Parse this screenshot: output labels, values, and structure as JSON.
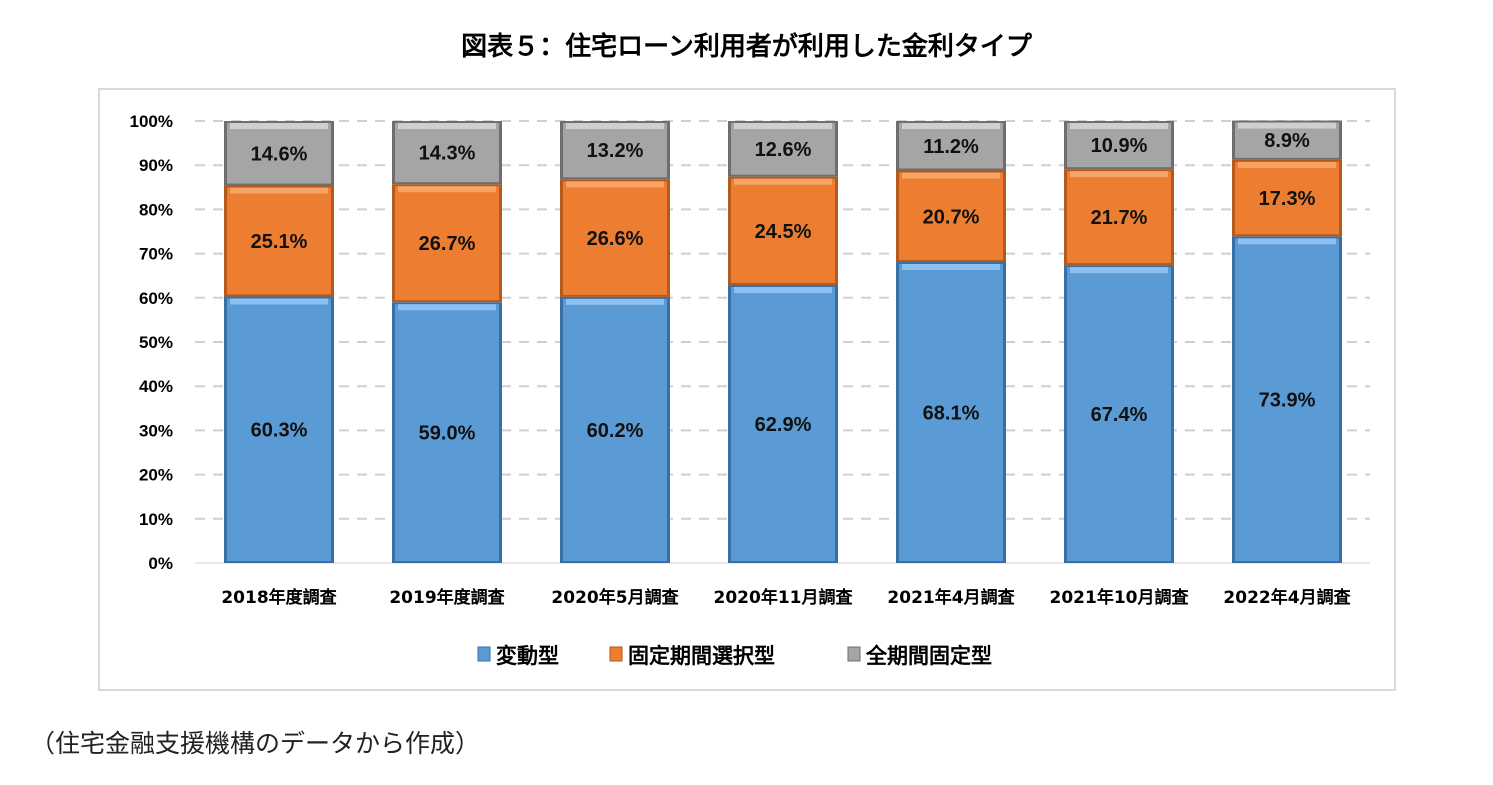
{
  "chart_data": {
    "type": "bar",
    "stacked": true,
    "title": "図表５：住宅ローン利用者が利用した金利タイプ",
    "categories": [
      "2018年度調査",
      "2019年度調査",
      "2020年5月調査",
      "2020年11月調査",
      "2021年4月調査",
      "2021年10月調査",
      "2022年4月調査"
    ],
    "series": [
      {
        "name": "変動型",
        "color": "#5b9bd5",
        "values": [
          60.3,
          59.0,
          60.2,
          62.9,
          68.1,
          67.4,
          73.9
        ]
      },
      {
        "name": "固定期間選択型",
        "color": "#ed7d31",
        "values": [
          25.1,
          26.7,
          26.6,
          24.5,
          20.7,
          21.7,
          17.3
        ]
      },
      {
        "name": "全期間固定型",
        "color": "#a5a5a5",
        "values": [
          14.6,
          14.3,
          13.2,
          12.6,
          11.2,
          10.9,
          8.9
        ]
      }
    ],
    "yticks": [
      "0%",
      "10%",
      "20%",
      "30%",
      "40%",
      "50%",
      "60%",
      "70%",
      "80%",
      "90%",
      "100%"
    ],
    "ylim": [
      0,
      100
    ],
    "grid": true,
    "legend": "bottom",
    "xlabel": "",
    "ylabel": ""
  },
  "source_note": "（住宅金融支援機構のデータから作成）"
}
